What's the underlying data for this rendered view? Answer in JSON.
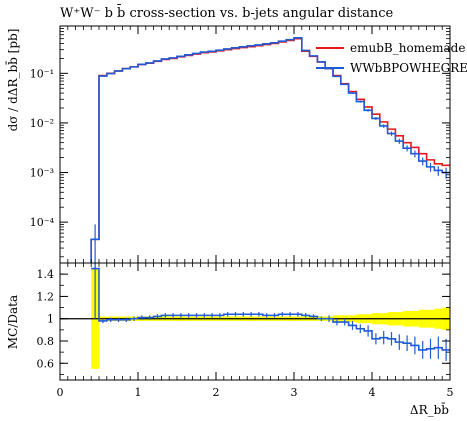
{
  "chart_data": [
    {
      "panel": "main",
      "type": "line",
      "title": "W⁺W⁻ b b̄ cross-section vs. b-jets angular distance",
      "ylabel": "dσ / dΔR_bb̄ [pb]",
      "yscale": "log",
      "ylim": [
        1.5e-05,
        0.9
      ],
      "xlim": [
        0,
        5
      ],
      "y_tick_labels": [
        "10⁻⁴",
        "10⁻³",
        "10⁻²",
        "10⁻¹"
      ],
      "y_tick_values": [
        0.0001,
        0.001,
        0.01,
        0.1
      ],
      "legend_placement": "top-right",
      "x_edges": [
        0.4,
        0.5,
        0.6,
        0.7,
        0.8,
        0.9,
        1.0,
        1.1,
        1.2,
        1.3,
        1.4,
        1.5,
        1.6,
        1.7,
        1.8,
        1.9,
        2.0,
        2.1,
        2.2,
        2.3,
        2.4,
        2.5,
        2.6,
        2.7,
        2.8,
        2.9,
        3.0,
        3.1,
        3.2,
        3.3,
        3.4,
        3.5,
        3.6,
        3.7,
        3.8,
        3.9,
        4.0,
        4.1,
        4.2,
        4.3,
        4.4,
        4.5,
        4.6,
        4.7,
        4.8,
        4.9,
        5.0
      ],
      "series": [
        {
          "name": "emubB_homemade",
          "color": "#e41a1c",
          "values": [
            4.5e-05,
            0.09,
            0.1,
            0.112,
            0.125,
            0.135,
            0.15,
            0.16,
            0.175,
            0.19,
            0.2,
            0.215,
            0.23,
            0.245,
            0.26,
            0.27,
            0.285,
            0.3,
            0.315,
            0.33,
            0.345,
            0.36,
            0.38,
            0.4,
            0.43,
            0.46,
            0.5,
            0.28,
            0.22,
            0.17,
            0.125,
            0.09,
            0.062,
            0.043,
            0.03,
            0.021,
            0.015,
            0.0105,
            0.0075,
            0.0055,
            0.004,
            0.0032,
            0.0024,
            0.0018,
            0.0015,
            0.0014
          ]
        },
        {
          "name": "WWbBPOWHEGRES",
          "color": "#1f5bd6",
          "values": [
            4.5e-05,
            0.088,
            0.099,
            0.111,
            0.124,
            0.135,
            0.152,
            0.162,
            0.178,
            0.195,
            0.205,
            0.22,
            0.236,
            0.252,
            0.268,
            0.278,
            0.293,
            0.31,
            0.327,
            0.342,
            0.358,
            0.373,
            0.393,
            0.413,
            0.445,
            0.478,
            0.52,
            0.29,
            0.225,
            0.17,
            0.125,
            0.087,
            0.06,
            0.04,
            0.027,
            0.018,
            0.0123,
            0.0087,
            0.0061,
            0.0043,
            0.0031,
            0.0024,
            0.0017,
            0.0013,
            0.0011,
            0.001
          ],
          "errors_rel": [
            1.0,
            0.02,
            0.02,
            0.02,
            0.02,
            0.02,
            0.02,
            0.02,
            0.02,
            0.02,
            0.02,
            0.02,
            0.02,
            0.02,
            0.02,
            0.02,
            0.02,
            0.02,
            0.02,
            0.02,
            0.02,
            0.02,
            0.02,
            0.02,
            0.02,
            0.02,
            0.02,
            0.02,
            0.02,
            0.02,
            0.03,
            0.03,
            0.03,
            0.04,
            0.05,
            0.06,
            0.07,
            0.08,
            0.1,
            0.12,
            0.14,
            0.16,
            0.18,
            0.2,
            0.22,
            0.25
          ]
        }
      ]
    },
    {
      "panel": "ratio",
      "type": "line",
      "ylabel": "MC/Data",
      "xlabel": "ΔR_bb̄",
      "xlim": [
        0,
        5
      ],
      "ylim": [
        0.45,
        1.5
      ],
      "x_tick_labels": [
        "0",
        "1",
        "2",
        "3",
        "4",
        "5"
      ],
      "x_tick_values": [
        0,
        1,
        2,
        3,
        4,
        5
      ],
      "y_tick_labels": [
        "0.6",
        "0.8",
        "1",
        "1.2",
        "1.4"
      ],
      "y_tick_values": [
        0.6,
        0.8,
        1.0,
        1.2,
        1.4
      ],
      "band_color": "#ffff00",
      "x_edges": [
        0.4,
        0.5,
        0.6,
        0.7,
        0.8,
        0.9,
        1.0,
        1.1,
        1.2,
        1.3,
        1.4,
        1.5,
        1.6,
        1.7,
        1.8,
        1.9,
        2.0,
        2.1,
        2.2,
        2.3,
        2.4,
        2.5,
        2.6,
        2.7,
        2.8,
        2.9,
        3.0,
        3.1,
        3.2,
        3.3,
        3.4,
        3.5,
        3.6,
        3.7,
        3.8,
        3.9,
        4.0,
        4.1,
        4.2,
        4.3,
        4.4,
        4.5,
        4.6,
        4.7,
        4.8,
        4.9,
        5.0
      ],
      "band_halfwidth": [
        0.45,
        0.02,
        0.02,
        0.02,
        0.02,
        0.02,
        0.02,
        0.02,
        0.02,
        0.02,
        0.02,
        0.02,
        0.02,
        0.02,
        0.02,
        0.02,
        0.02,
        0.02,
        0.02,
        0.02,
        0.02,
        0.02,
        0.02,
        0.02,
        0.02,
        0.02,
        0.02,
        0.02,
        0.02,
        0.02,
        0.02,
        0.03,
        0.03,
        0.03,
        0.04,
        0.04,
        0.05,
        0.05,
        0.06,
        0.06,
        0.07,
        0.07,
        0.08,
        0.08,
        0.09,
        0.1
      ],
      "series": [
        {
          "name": "WWbBPOWHEGRES",
          "color": "#1f5bd6",
          "values": [
            1.45,
            0.98,
            0.99,
            0.99,
            0.99,
            1.0,
            1.01,
            1.01,
            1.02,
            1.03,
            1.03,
            1.03,
            1.03,
            1.03,
            1.03,
            1.03,
            1.03,
            1.04,
            1.04,
            1.04,
            1.04,
            1.04,
            1.03,
            1.03,
            1.04,
            1.04,
            1.04,
            1.03,
            1.02,
            1.0,
            1.0,
            0.97,
            0.97,
            0.94,
            0.91,
            0.89,
            0.82,
            0.83,
            0.82,
            0.79,
            0.78,
            0.76,
            0.72,
            0.73,
            0.74,
            0.72
          ],
          "errors": [
            0.45,
            0.02,
            0.02,
            0.02,
            0.02,
            0.02,
            0.02,
            0.02,
            0.02,
            0.02,
            0.02,
            0.02,
            0.02,
            0.02,
            0.02,
            0.02,
            0.02,
            0.02,
            0.02,
            0.02,
            0.02,
            0.02,
            0.02,
            0.02,
            0.02,
            0.02,
            0.02,
            0.02,
            0.02,
            0.02,
            0.03,
            0.03,
            0.03,
            0.04,
            0.04,
            0.05,
            0.05,
            0.06,
            0.06,
            0.07,
            0.07,
            0.08,
            0.08,
            0.09,
            0.1,
            0.1
          ]
        }
      ]
    }
  ]
}
